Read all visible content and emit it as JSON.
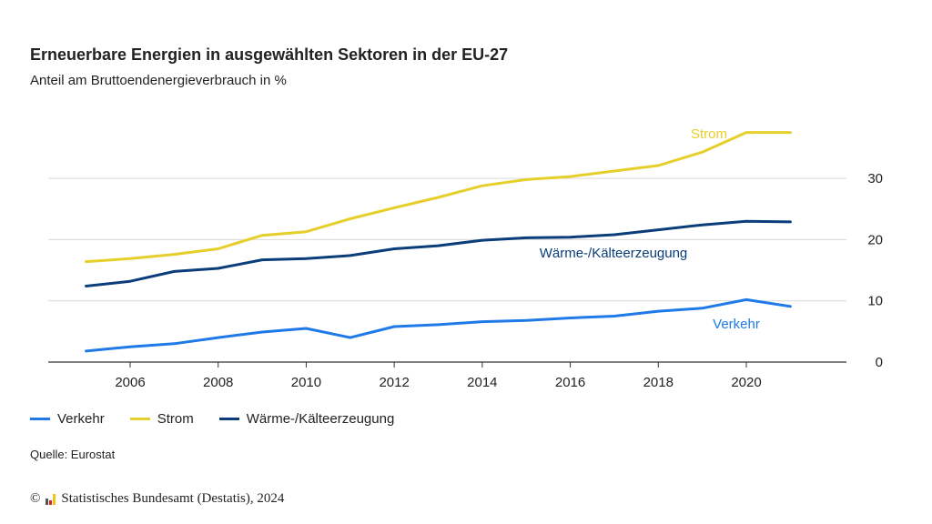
{
  "header": {
    "title": "Erneuerbare Energien in ausgewählten Sektoren in der EU-27",
    "subtitle": "Anteil am Bruttoendenergieverbrauch in %"
  },
  "footer": {
    "source": "Quelle: Eurostat",
    "copyright_symbol": "©",
    "copyright_text": "Statistisches Bundesamt (Destatis), 2024",
    "logo_icon": "destatis-logo-icon"
  },
  "chart_data": {
    "type": "line",
    "title": "Erneuerbare Energien in ausgewählten Sektoren in der EU-27",
    "subtitle": "Anteil am Bruttoendenergieverbrauch in %",
    "xlabel": "",
    "ylabel": "",
    "x": [
      2005,
      2006,
      2007,
      2008,
      2009,
      2010,
      2011,
      2012,
      2013,
      2014,
      2015,
      2016,
      2017,
      2018,
      2019,
      2020,
      2021
    ],
    "x_ticks": [
      "2006",
      "2008",
      "2010",
      "2012",
      "2014",
      "2016",
      "2018",
      "2020"
    ],
    "y_ticks": [
      "0",
      "10",
      "20",
      "30"
    ],
    "ylim": [
      0,
      38
    ],
    "xlim": [
      2004,
      2022
    ],
    "grid": true,
    "y_axis_position": "right",
    "legend_position": "bottom-left",
    "series": [
      {
        "name": "Verkehr",
        "color": "#1f7ae8",
        "values": [
          1.8,
          2.5,
          3.0,
          4.0,
          4.9,
          5.5,
          4.0,
          5.8,
          6.1,
          6.6,
          6.8,
          7.2,
          7.5,
          8.3,
          8.8,
          10.2,
          9.1
        ]
      },
      {
        "name": "Strom",
        "color": "#e6cf2a",
        "values": [
          16.4,
          16.9,
          17.6,
          18.5,
          20.7,
          21.3,
          23.4,
          25.2,
          26.9,
          28.8,
          29.8,
          30.3,
          31.2,
          32.1,
          34.3,
          37.5,
          37.5
        ]
      },
      {
        "name": "Wärme-/Kälteerzeugung",
        "color": "#0b3d7a",
        "values": [
          12.4,
          13.2,
          14.8,
          15.3,
          16.7,
          16.9,
          17.4,
          18.5,
          19.0,
          19.9,
          20.3,
          20.4,
          20.8,
          21.6,
          22.4,
          23.0,
          22.9
        ]
      }
    ],
    "annotations": [
      {
        "text": "Strom",
        "series": "Strom"
      },
      {
        "text": "Wärme-/Kälteerzeugung",
        "series": "Wärme-/Kälteerzeugung"
      },
      {
        "text": "Verkehr",
        "series": "Verkehr"
      }
    ]
  }
}
